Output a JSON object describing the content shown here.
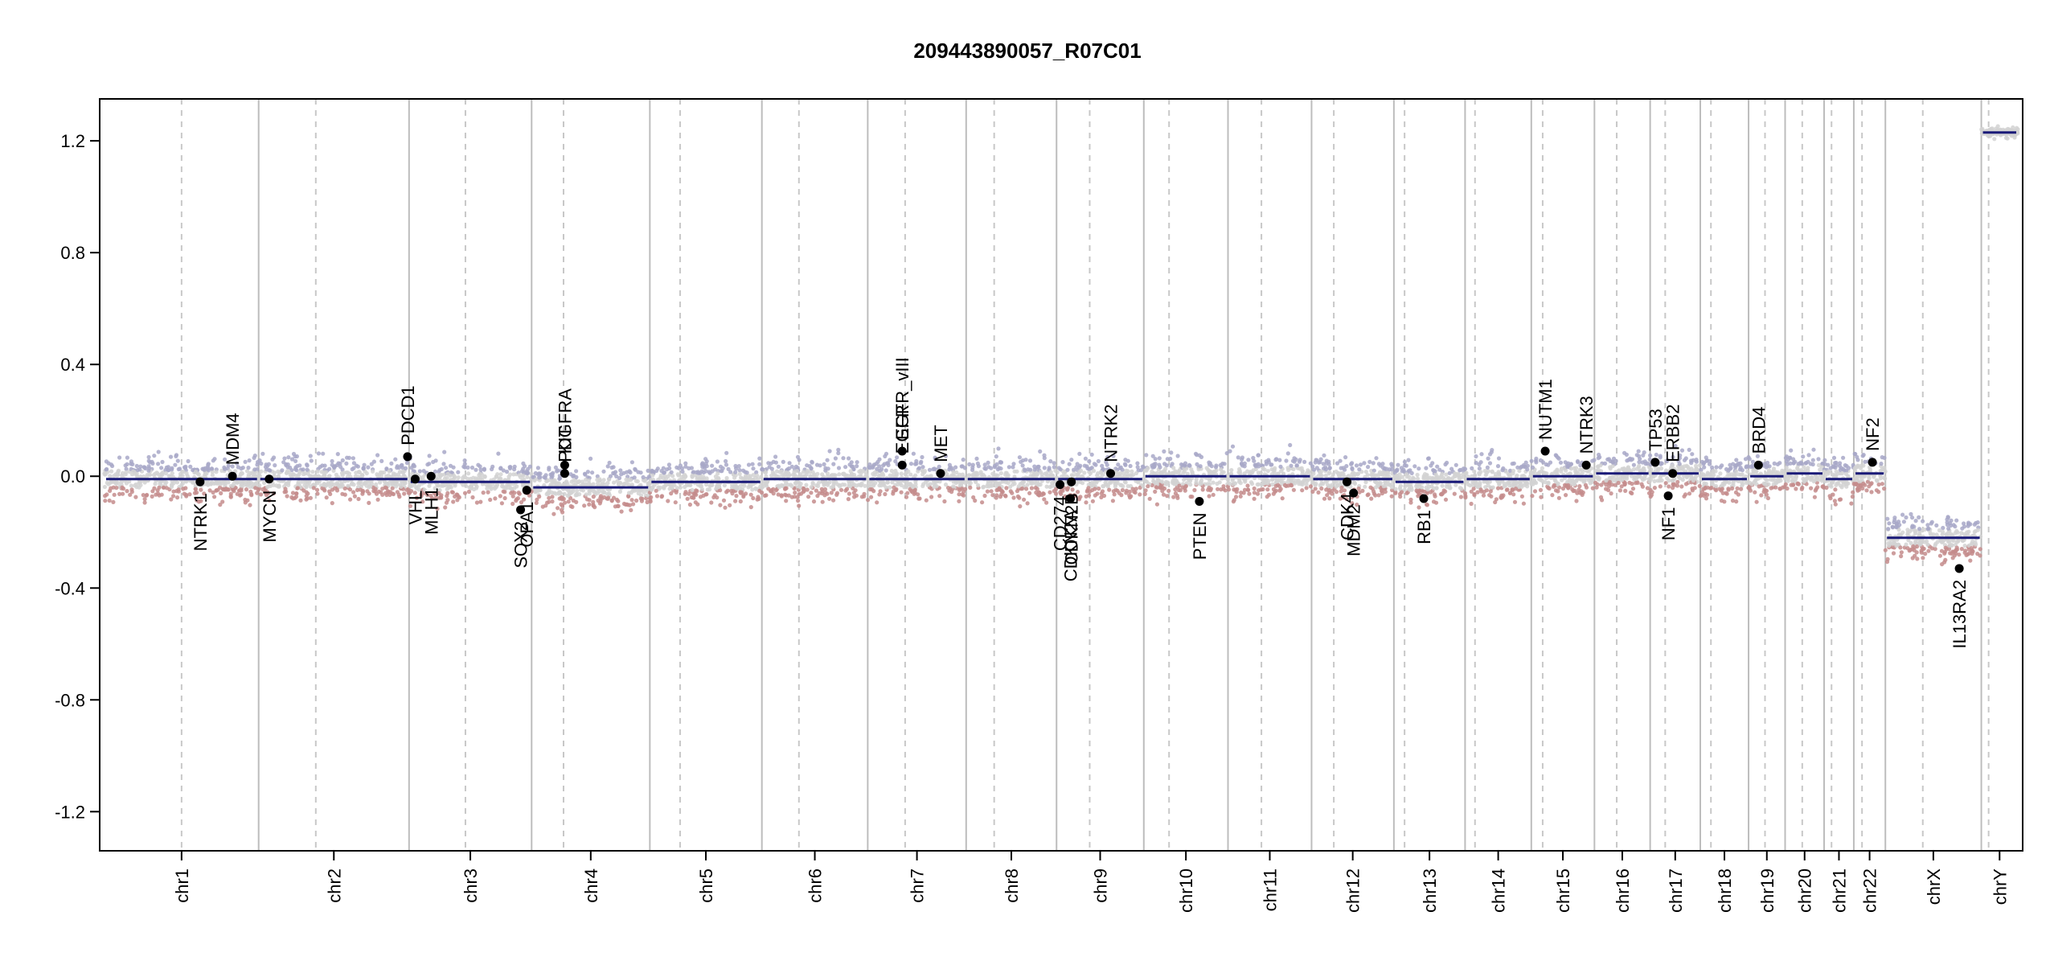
{
  "chart_data": {
    "type": "scatter",
    "title": "209443890057_R07C01",
    "xlabel": "",
    "ylabel": "",
    "ylim": [
      -1.34,
      1.35
    ],
    "y_ticks": [
      1.2,
      0.8,
      0.4,
      0.0,
      -0.4,
      -0.8,
      -1.2
    ],
    "y_tick_labels": [
      "1.2",
      "0.8",
      "0.4",
      "0.0",
      "-0.4",
      "-0.8",
      "-1.2"
    ],
    "grid": false,
    "point_colors": {
      "above": "#a8a8c8",
      "near_zero": "#d2d2d2",
      "below": "#c48c8c",
      "segment": "#1a1a78"
    },
    "chromosomes": [
      {
        "name": "chr1",
        "length": 249,
        "centromere": 0.5,
        "segment": -0.01
      },
      {
        "name": "chr2",
        "length": 243,
        "centromere": 0.38,
        "segment": -0.01
      },
      {
        "name": "chr3",
        "length": 198,
        "centromere": 0.46,
        "segment": -0.02
      },
      {
        "name": "chr4",
        "length": 191,
        "centromere": 0.27,
        "segment": -0.04
      },
      {
        "name": "chr5",
        "length": 181,
        "centromere": 0.27,
        "segment": -0.02
      },
      {
        "name": "chr6",
        "length": 171,
        "centromere": 0.35,
        "segment": -0.01
      },
      {
        "name": "chr7",
        "length": 159,
        "centromere": 0.38,
        "segment": -0.01
      },
      {
        "name": "chr8",
        "length": 146,
        "centromere": 0.31,
        "segment": -0.01
      },
      {
        "name": "chr9",
        "length": 141,
        "centromere": 0.38,
        "segment": -0.01
      },
      {
        "name": "chr10",
        "length": 136,
        "centromere": 0.3,
        "segment": 0.0
      },
      {
        "name": "chr11",
        "length": 135,
        "centromere": 0.4,
        "segment": 0.0
      },
      {
        "name": "chr12",
        "length": 133,
        "centromere": 0.27,
        "segment": -0.01
      },
      {
        "name": "chr13",
        "length": 115,
        "centromere": 0.15,
        "segment": -0.02
      },
      {
        "name": "chr14",
        "length": 107,
        "centromere": 0.15,
        "segment": -0.01
      },
      {
        "name": "chr15",
        "length": 102,
        "centromere": 0.18,
        "segment": 0.0
      },
      {
        "name": "chr16",
        "length": 90,
        "centromere": 0.4,
        "segment": 0.01
      },
      {
        "name": "chr17",
        "length": 81,
        "centromere": 0.3,
        "segment": 0.01
      },
      {
        "name": "chr18",
        "length": 78,
        "centromere": 0.22,
        "segment": -0.01
      },
      {
        "name": "chr19",
        "length": 59,
        "centromere": 0.45,
        "segment": 0.0
      },
      {
        "name": "chr20",
        "length": 63,
        "centromere": 0.44,
        "segment": 0.01
      },
      {
        "name": "chr21",
        "length": 48,
        "centromere": 0.25,
        "segment": -0.01
      },
      {
        "name": "chr22",
        "length": 51,
        "centromere": 0.26,
        "segment": 0.01
      },
      {
        "name": "chrX",
        "length": 155,
        "centromere": 0.39,
        "segment": -0.22
      },
      {
        "name": "chrY",
        "length": 59,
        "centromere": 0.2,
        "segment": 1.23
      }
    ],
    "genes": [
      {
        "name": "NTRK1",
        "chr": "chr1",
        "pos": 0.62,
        "value": -0.02,
        "label_side": "below"
      },
      {
        "name": "MDM4",
        "chr": "chr1",
        "pos": 0.83,
        "value": 0.0,
        "label_side": "above"
      },
      {
        "name": "MYCN",
        "chr": "chr2",
        "pos": 0.07,
        "value": -0.01,
        "label_side": "below"
      },
      {
        "name": "PDCD1",
        "chr": "chr2",
        "pos": 0.99,
        "value": 0.07,
        "label_side": "above"
      },
      {
        "name": "VHL",
        "chr": "chr3",
        "pos": 0.05,
        "value": -0.01,
        "label_side": "below"
      },
      {
        "name": "MLH1",
        "chr": "chr3",
        "pos": 0.18,
        "value": 0.0,
        "label_side": "below"
      },
      {
        "name": "SOX2",
        "chr": "chr3",
        "pos": 0.91,
        "value": -0.12,
        "label_side": "below"
      },
      {
        "name": "OPA1",
        "chr": "chr3",
        "pos": 0.96,
        "value": -0.05,
        "label_side": "below"
      },
      {
        "name": "KIT",
        "chr": "chr4",
        "pos": 0.28,
        "value": 0.04,
        "label_side": "above"
      },
      {
        "name": "PDGFRA",
        "chr": "chr4",
        "pos": 0.28,
        "value": 0.01,
        "label_side": "above"
      },
      {
        "name": "EGFR",
        "chr": "chr7",
        "pos": 0.35,
        "value": 0.04,
        "label_side": "above"
      },
      {
        "name": "EGFR_vIII",
        "chr": "chr7",
        "pos": 0.35,
        "value": 0.09,
        "label_side": "above"
      },
      {
        "name": "MET",
        "chr": "chr7",
        "pos": 0.74,
        "value": 0.01,
        "label_side": "above"
      },
      {
        "name": "CD274",
        "chr": "chr9",
        "pos": 0.04,
        "value": -0.03,
        "label_side": "below"
      },
      {
        "name": "CDKN2A",
        "chr": "chr9",
        "pos": 0.16,
        "value": -0.08,
        "label_side": "below"
      },
      {
        "name": "CDKN2B",
        "chr": "chr9",
        "pos": 0.17,
        "value": -0.02,
        "label_side": "below"
      },
      {
        "name": "NTRK2",
        "chr": "chr9",
        "pos": 0.62,
        "value": 0.01,
        "label_side": "above"
      },
      {
        "name": "PTEN",
        "chr": "chr10",
        "pos": 0.66,
        "value": -0.09,
        "label_side": "below"
      },
      {
        "name": "CDK4",
        "chr": "chr12",
        "pos": 0.43,
        "value": -0.02,
        "label_side": "below"
      },
      {
        "name": "MDM2",
        "chr": "chr12",
        "pos": 0.51,
        "value": -0.06,
        "label_side": "below"
      },
      {
        "name": "RB1",
        "chr": "chr13",
        "pos": 0.42,
        "value": -0.08,
        "label_side": "below"
      },
      {
        "name": "NUTM1",
        "chr": "chr15",
        "pos": 0.22,
        "value": 0.09,
        "label_side": "above"
      },
      {
        "name": "NTRK3",
        "chr": "chr15",
        "pos": 0.87,
        "value": 0.04,
        "label_side": "above"
      },
      {
        "name": "TP53",
        "chr": "chr17",
        "pos": 0.1,
        "value": 0.05,
        "label_side": "above"
      },
      {
        "name": "NF1",
        "chr": "chr17",
        "pos": 0.36,
        "value": -0.07,
        "label_side": "below"
      },
      {
        "name": "ERBB2",
        "chr": "chr17",
        "pos": 0.45,
        "value": 0.01,
        "label_side": "above"
      },
      {
        "name": "BRD4",
        "chr": "chr19",
        "pos": 0.27,
        "value": 0.04,
        "label_side": "above"
      },
      {
        "name": "NF2",
        "chr": "chr22",
        "pos": 0.59,
        "value": 0.05,
        "label_side": "above"
      },
      {
        "name": "IL13RA2",
        "chr": "chrX",
        "pos": 0.77,
        "value": -0.33,
        "label_side": "below"
      }
    ]
  }
}
